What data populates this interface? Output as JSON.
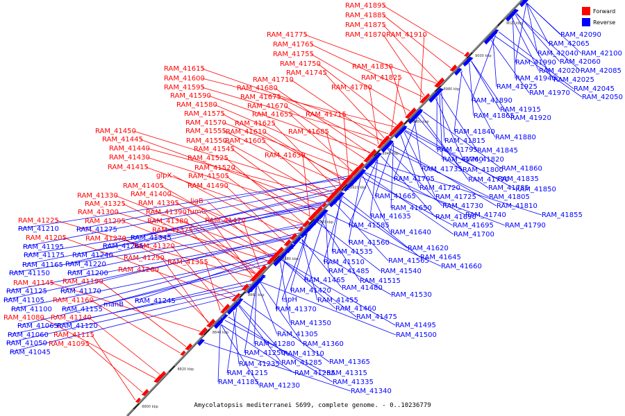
{
  "legend": {
    "forward_label": "Forward",
    "reverse_label": "Reverse",
    "forward_color": "#ff0000",
    "reverse_color": "#0000ff"
  },
  "caption": "Amycolatopsis mediterranei S699, complete genome. - 0..10236779",
  "axis": {
    "unit": "kbp",
    "ticks": [
      "8800 kbp",
      "8820 kbp",
      "8840 kbp",
      "8860 kbp",
      "8880 kbp",
      "8900 kbp",
      "8920 kbp",
      "8940 kbp",
      "8960 kbp",
      "8980 kbp",
      "9000 kbp",
      "9020 kbp"
    ]
  },
  "forward_genes": [
    "RAM_41895",
    "RAM_41885",
    "RAM_41875",
    "RAM_41870",
    "RAM_41910",
    "RAM_41775",
    "RAM_41765",
    "RAM_41755",
    "RAM_41750",
    "RAM_41745",
    "RAM_41830",
    "RAM_41825",
    "RAM_41780",
    "RAM_41710",
    "RAM_41680",
    "RAM_41675",
    "RAM_41670",
    "RAM_41655",
    "RAM_41715",
    "RAM_41625",
    "RAM_41610",
    "RAM_41685",
    "RAM_41605",
    "RAM_41630",
    "RAM_41615",
    "RAM_41600",
    "RAM_41595",
    "RAM_41590",
    "RAM_41580",
    "RAM_41575",
    "RAM_41570",
    "RAM_41555",
    "RAM_41550",
    "RAM_41545",
    "RAM_41525",
    "RAM_41520",
    "RAM_41505",
    "RAM_41490",
    "RAM_41450",
    "RAM_41445",
    "RAM_41440",
    "RAM_41430",
    "RAM_41415",
    "glpX",
    "RAM_41405",
    "RAM_41400",
    "RAM_41395",
    "ligB",
    "RAM_41390",
    "fumC",
    "RAM_41470",
    "RAM_41380",
    "RAM_41375",
    "RAM_41330",
    "RAM_41325",
    "RAM_41300",
    "RAM_41295",
    "RAM_41270",
    "RAM_41320",
    "RAM_41290",
    "RAM_41355",
    "RAM_41260",
    "RAM_41225",
    "RAM_41205",
    "RAM_41190",
    "RAM_41145",
    "RAM_41160",
    "RAM_41140",
    "RAM_41080",
    "RAM_41115",
    "RAM_41095"
  ],
  "reverse_genes": [
    "RAM_42090",
    "RAM_42065",
    "RAM_42040",
    "RAM_42100",
    "RAM_41990",
    "RAM_42060",
    "RAM_42020",
    "RAM_42085",
    "RAM_41940",
    "RAM_42025",
    "RAM_41925",
    "RAM_41970",
    "RAM_42045",
    "RAM_42050",
    "RAM_41890",
    "RAM_41915",
    "RAM_41865",
    "RAM_41920",
    "RAM_41840",
    "RAM_41880",
    "RAM_41815",
    "RAM_41795",
    "RAM_41845",
    "RAM_41820",
    "RAM_41760",
    "RAM_41735",
    "RAM_41800",
    "RAM_41860",
    "RAM_41705",
    "RAM_41770",
    "RAM_41835",
    "RAM_41720",
    "RAM_41785",
    "RAM_41850",
    "RAM_41725",
    "RAM_41805",
    "RAM_41665",
    "RAM_41730",
    "RAM_41810",
    "RAM_41650",
    "RAM_41740",
    "RAM_41855",
    "RAM_41635",
    "RAM_41690",
    "RAM_41585",
    "RAM_41695",
    "RAM_41790",
    "RAM_41640",
    "RAM_41700",
    "RAM_41560",
    "RAM_41620",
    "RAM_41535",
    "RAM_41565",
    "RAM_41645",
    "RAM_41510",
    "RAM_41540",
    "RAM_41660",
    "RAM_41485",
    "RAM_41515",
    "RAM_41465",
    "RAM_41480",
    "RAM_41530",
    "RAM_41420",
    "RAM_41455",
    "ispH",
    "RAM_41460",
    "RAM_41370",
    "RAM_41475",
    "RAM_41350",
    "RAM_41495",
    "RAM_41305",
    "RAM_41500",
    "RAM_41280",
    "RAM_41360",
    "RAM_41250",
    "RAM_41310",
    "RAM_41235",
    "RAM_41285",
    "RAM_41365",
    "RAM_41215",
    "RAM_41255",
    "RAM_41315",
    "RAM_41185",
    "RAM_41230",
    "RAM_41335",
    "RAM_41340",
    "RAM_41210",
    "RAM_41275",
    "RAM_41265",
    "RAM_41195",
    "RAM_41345",
    "RAM_41175",
    "RAM_41240",
    "RAM_41165",
    "RAM_41220",
    "RAM_41150",
    "RAM_41200",
    "RAM_41125",
    "RAM_41170",
    "RAM_41105",
    "manB",
    "RAM_41245",
    "RAM_41100",
    "RAM_41155",
    "RAM_41065",
    "RAM_41120",
    "RAM_41060",
    "RAM_41050",
    "RAM_41045"
  ]
}
